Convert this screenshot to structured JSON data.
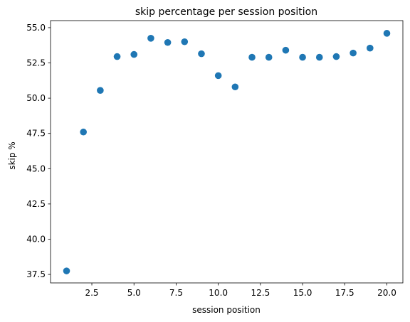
{
  "chart_data": {
    "type": "scatter",
    "title": "skip percentage per session position",
    "xlabel": "session position",
    "ylabel": "skip %",
    "x_ticks": [
      2.5,
      5.0,
      7.5,
      10.0,
      12.5,
      15.0,
      17.5,
      20.0
    ],
    "y_ticks": [
      37.5,
      40.0,
      42.5,
      45.0,
      47.5,
      50.0,
      52.5,
      55.0
    ],
    "xlim": [
      0.05,
      20.95
    ],
    "ylim": [
      36.9,
      55.5
    ],
    "grid": false,
    "marker_color": "#1f77b4",
    "points": [
      {
        "x": 1,
        "y": 37.75
      },
      {
        "x": 2,
        "y": 47.6
      },
      {
        "x": 3,
        "y": 50.55
      },
      {
        "x": 4,
        "y": 52.95
      },
      {
        "x": 5,
        "y": 53.1
      },
      {
        "x": 6,
        "y": 54.25
      },
      {
        "x": 7,
        "y": 53.95
      },
      {
        "x": 8,
        "y": 54.0
      },
      {
        "x": 9,
        "y": 53.15
      },
      {
        "x": 10,
        "y": 51.6
      },
      {
        "x": 11,
        "y": 50.8
      },
      {
        "x": 12,
        "y": 52.9
      },
      {
        "x": 13,
        "y": 52.9
      },
      {
        "x": 14,
        "y": 53.4
      },
      {
        "x": 15,
        "y": 52.9
      },
      {
        "x": 16,
        "y": 52.9
      },
      {
        "x": 17,
        "y": 52.95
      },
      {
        "x": 18,
        "y": 53.2
      },
      {
        "x": 19,
        "y": 53.55
      },
      {
        "x": 20,
        "y": 54.6
      }
    ]
  }
}
